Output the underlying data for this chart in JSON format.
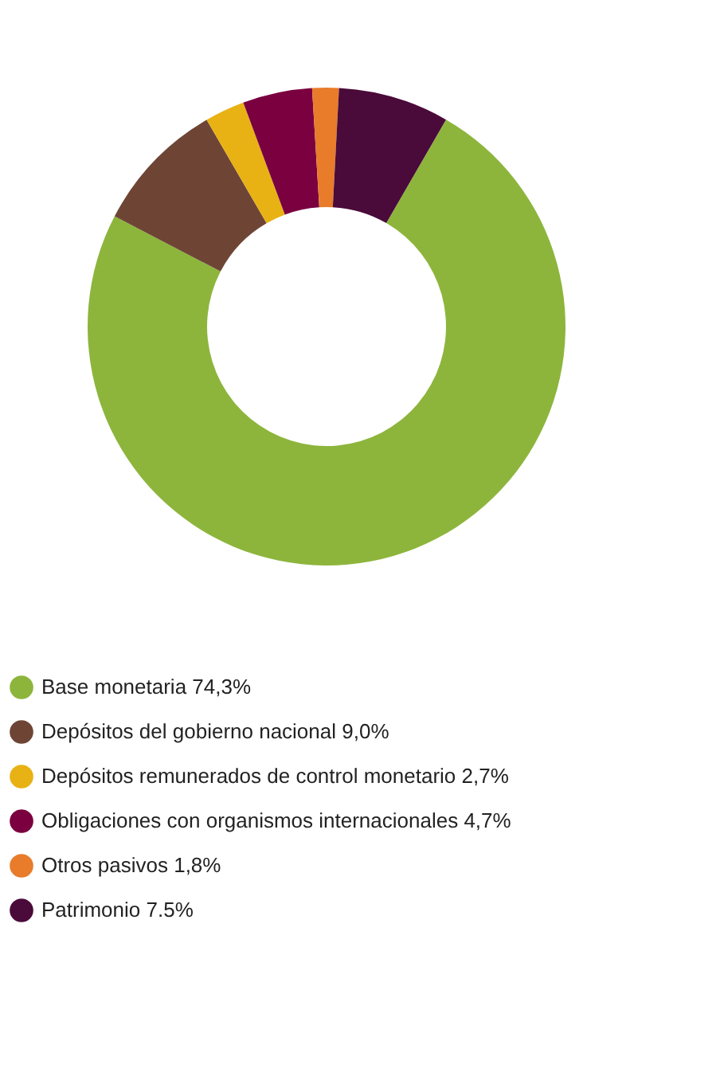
{
  "chart_data": {
    "type": "donut",
    "legend": "bottom",
    "categories": [
      "Base monetaria",
      "Depósitos del gobierno nacional",
      "Depósitos remunerados de control monetario",
      "Obligaciones con organismos internacionales",
      "Otros pasivos",
      "Patrimonio"
    ],
    "values": [
      74.3,
      9.0,
      2.7,
      4.7,
      1.8,
      7.5
    ],
    "value_labels": [
      "74,3%",
      "9,0%",
      "2,7%",
      "4,7%",
      "1,8%",
      "7.5%"
    ],
    "colors": [
      "#8db53c",
      "#6e4535",
      "#e8b214",
      "#7a0040",
      "#e87c2a",
      "#4a0a3a"
    ]
  }
}
